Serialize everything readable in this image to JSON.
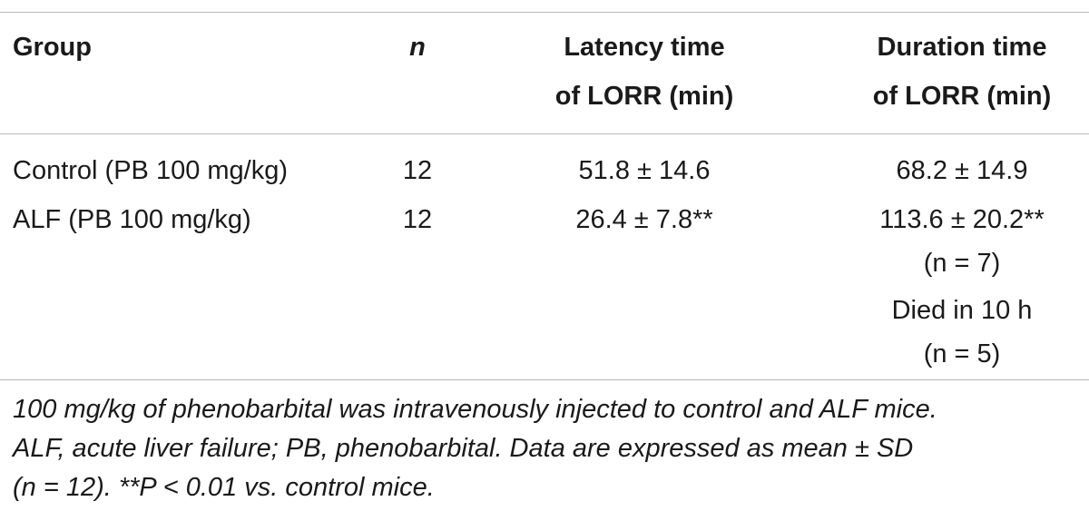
{
  "table": {
    "headers": {
      "group": "Group",
      "n": "n",
      "latency_line1": "Latency time",
      "latency_line2": "of LORR (min)",
      "duration_line1": "Duration time",
      "duration_line2": "of LORR (min)"
    },
    "rows": [
      {
        "group": "Control (PB 100 mg/kg)",
        "n": "12",
        "latency": "51.8 ± 14.6",
        "duration": "68.2 ± 14.9"
      },
      {
        "group": "ALF (PB 100 mg/kg)",
        "n": "12",
        "latency": "26.4 ± 7.8**",
        "duration": "113.6 ± 20.2**",
        "duration_n": "(n = 7)",
        "duration_note": "Died in 10 h",
        "duration_note_n": "(n = 5)"
      }
    ]
  },
  "footnote": {
    "line1": "100 mg/kg of phenobarbital was intravenously injected to control and ALF mice.",
    "line2": "ALF, acute liver failure; PB, phenobarbital. Data are expressed as mean ± SD",
    "line3": "(n = 12). **P < 0.01 vs. control mice."
  }
}
